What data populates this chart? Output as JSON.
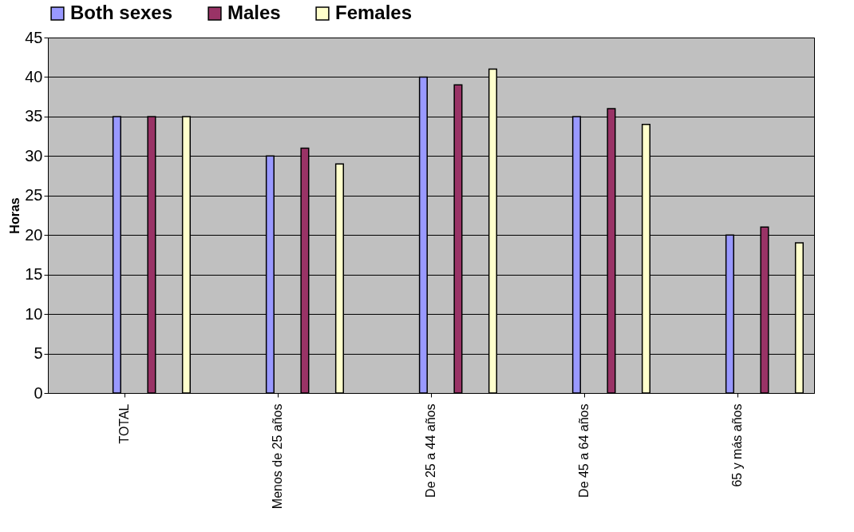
{
  "chart_data": {
    "type": "bar",
    "ylabel": "Horas",
    "categories": [
      "TOTAL",
      "Menos de 25 años",
      "De 25 a 44 años",
      "De 45 a 64 años",
      "65 y más años"
    ],
    "series": [
      {
        "name": "Both sexes",
        "color": "#9999ff",
        "values": [
          35,
          30,
          40,
          35,
          20
        ]
      },
      {
        "name": "Males",
        "color": "#993366",
        "values": [
          35,
          31,
          39,
          36,
          21
        ]
      },
      {
        "name": "Females",
        "color": "#ffffcc",
        "values": [
          35,
          29,
          41,
          34,
          19
        ]
      }
    ],
    "ylim": [
      0,
      45
    ],
    "yticks": [
      0,
      5,
      10,
      15,
      20,
      25,
      30,
      35,
      40,
      45
    ],
    "grid": "y",
    "legend": "top"
  }
}
